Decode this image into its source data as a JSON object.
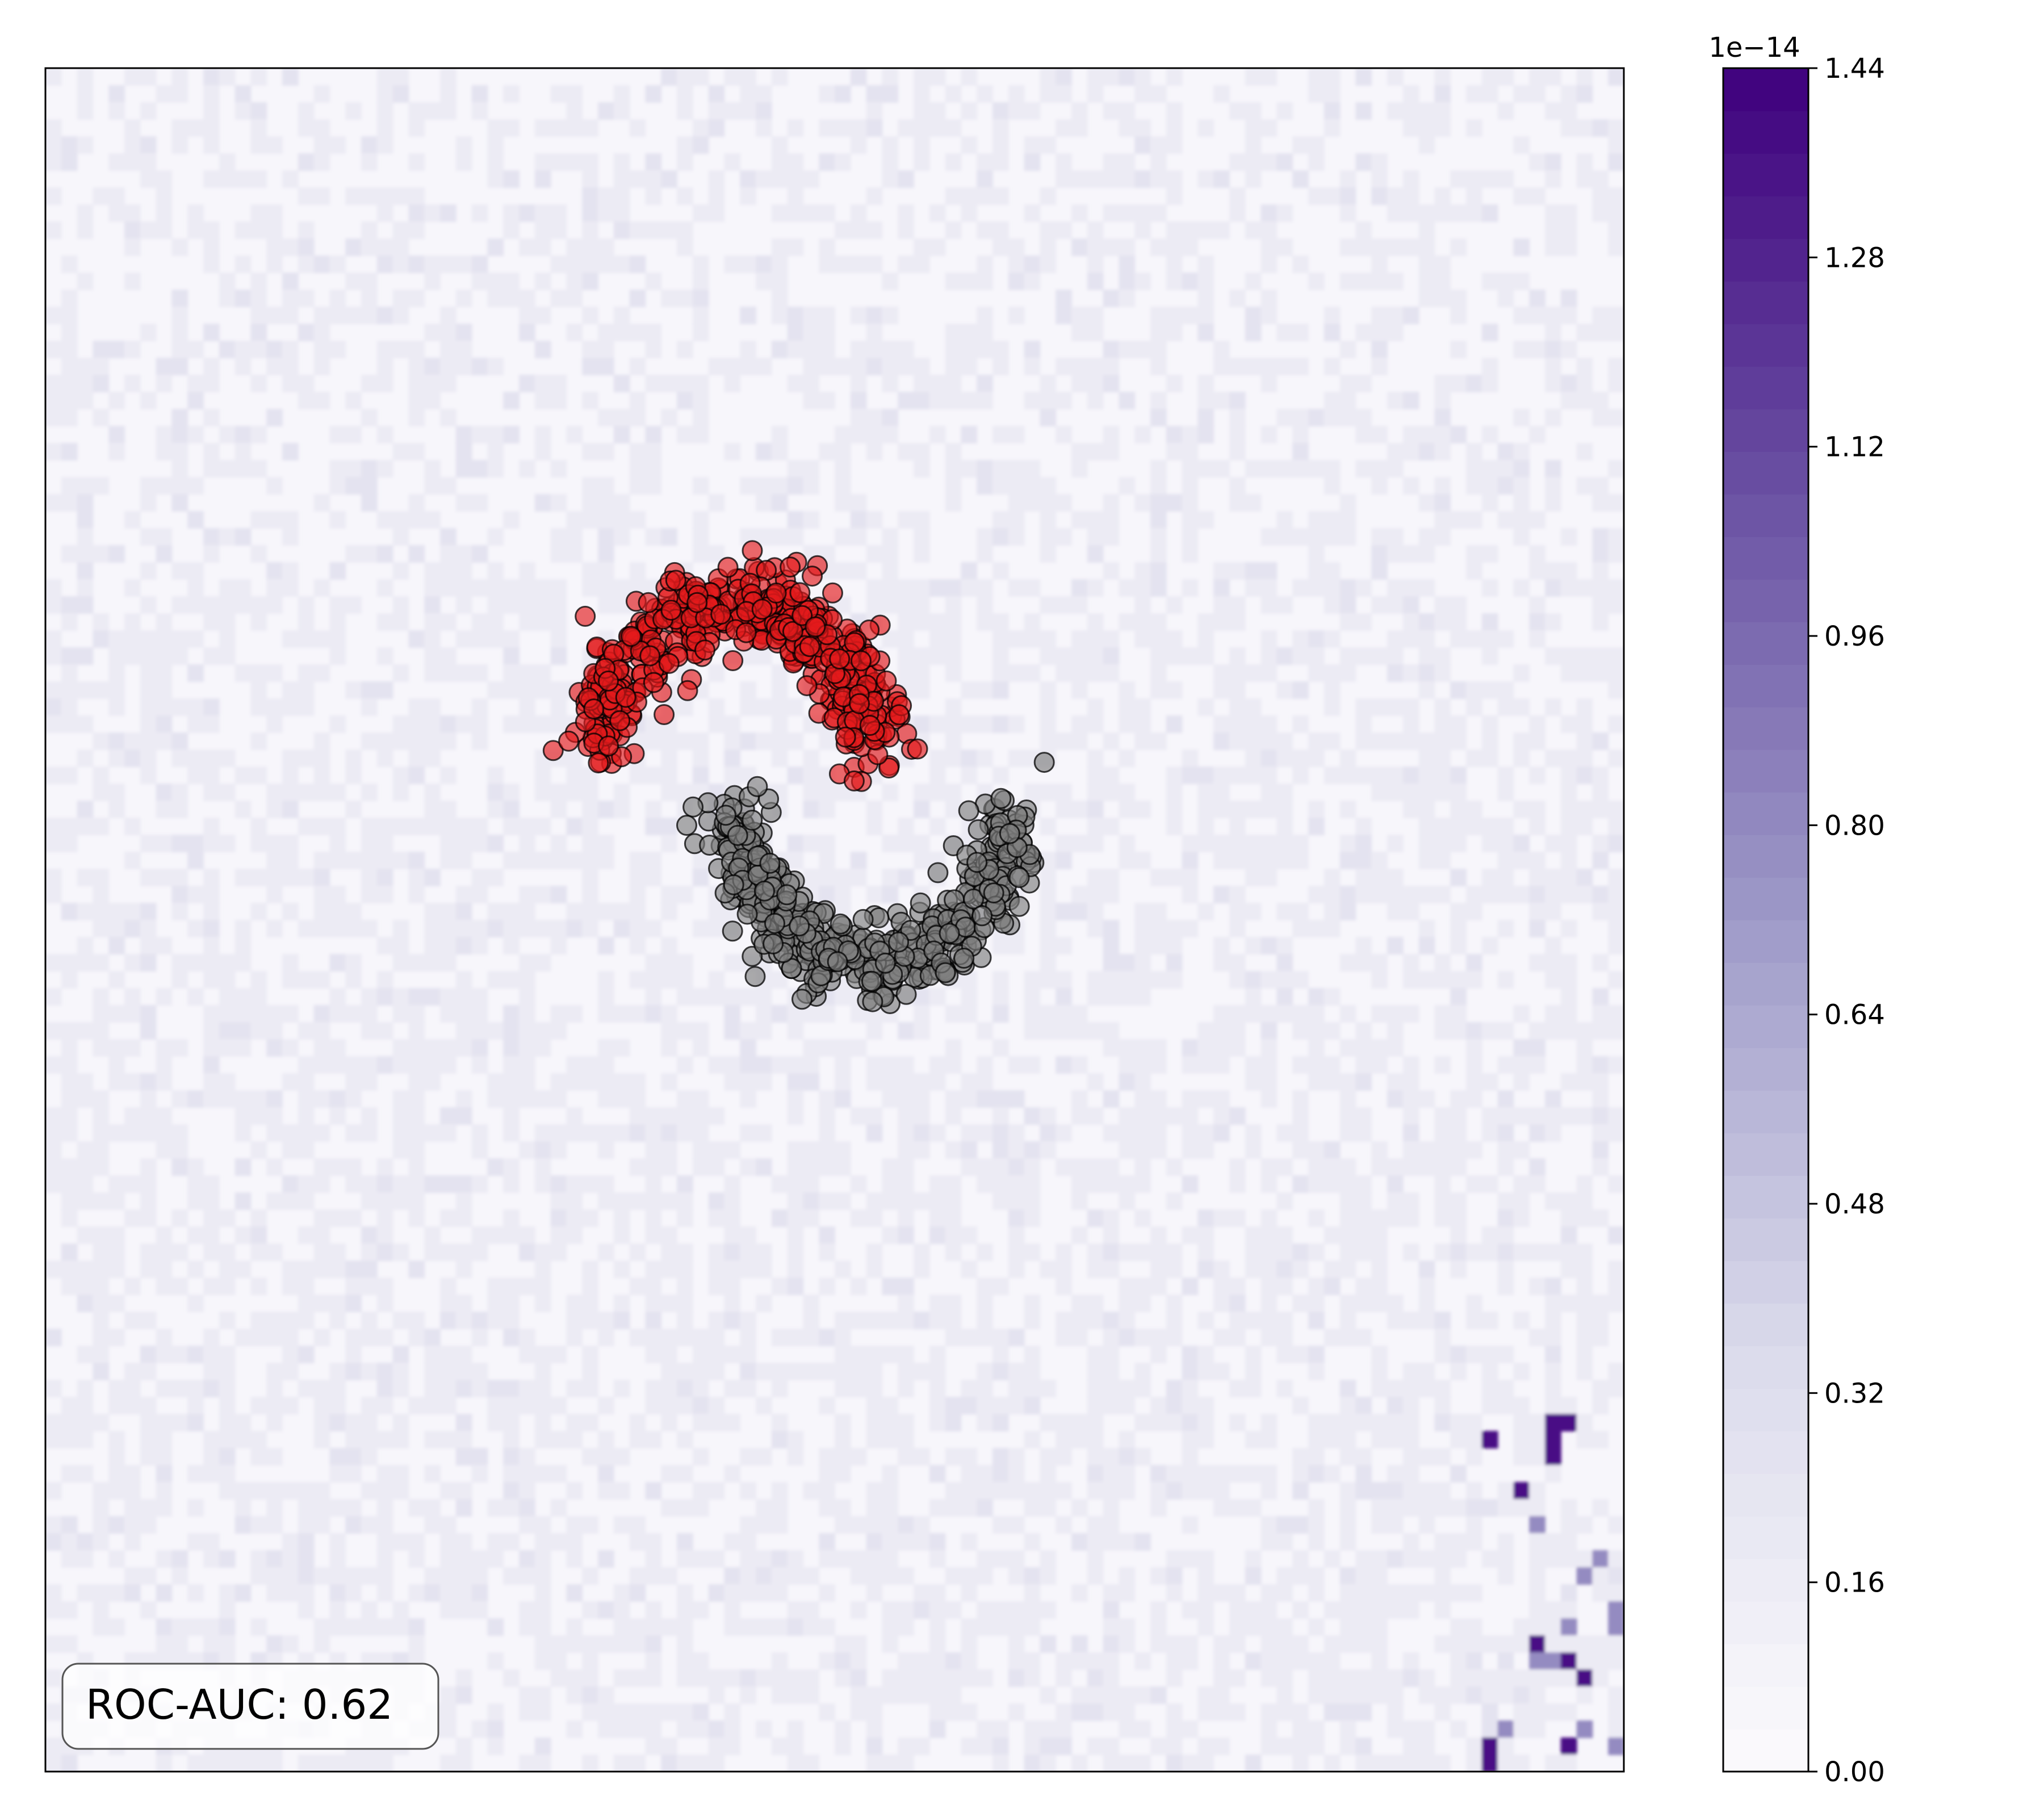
{
  "chart_data": {
    "type": "scatter",
    "xlim": [
      -3,
      3
    ],
    "ylim": [
      -3,
      3
    ],
    "axes_ticks_visible": false,
    "grid": false,
    "background": {
      "type": "filled-contour",
      "colormap": "Purples",
      "pattern": "low-level patchwork with small high-value patches near bottom-right corner",
      "max_value": 1.44e-14
    },
    "colorbar": {
      "offset_label": "1e−14",
      "min": 0,
      "max": 1.44,
      "ticks": [
        "0.00",
        "0.16",
        "0.32",
        "0.48",
        "0.64",
        "0.80",
        "0.96",
        "1.12",
        "1.28",
        "1.44"
      ],
      "tick_values": [
        0,
        0.16,
        0.32,
        0.48,
        0.64,
        0.8,
        0.96,
        1.12,
        1.28,
        1.44
      ],
      "n_levels": 40
    },
    "series": [
      {
        "shape": "upper-moon",
        "color": "#e41a1c",
        "edge_color": "#000000",
        "opacity": 0.65,
        "n_points": 500,
        "center": [
          -0.38,
          0.59
        ],
        "radius": 0.52,
        "noise": 0.07,
        "arc": "upper"
      },
      {
        "shape": "lower-moon",
        "color": "#808080",
        "edge_color": "#000000",
        "opacity": 0.65,
        "n_points": 500,
        "center": [
          0.14,
          0.37
        ],
        "radius": 0.52,
        "noise": 0.07,
        "arc": "lower"
      }
    ],
    "annotation": {
      "text": "ROC-AUC: 0.62",
      "placement": "bottom-left"
    }
  }
}
